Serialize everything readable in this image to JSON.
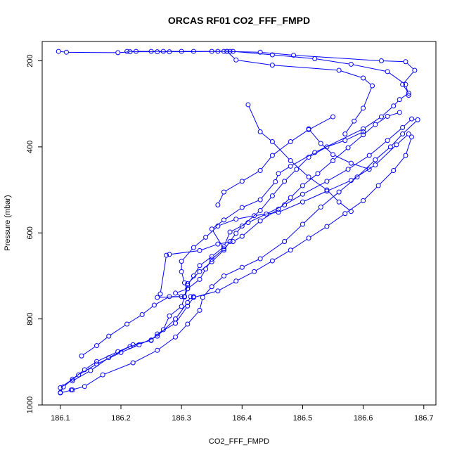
{
  "chart_data": {
    "type": "line",
    "title": "ORCAS RF01 CO2_FFF_FMPD",
    "xlabel": "CO2_FFF_FMPD",
    "ylabel": "Pressure (mbar)",
    "xlim": [
      186.07,
      186.72
    ],
    "ylim": [
      1000,
      155
    ],
    "y_reversed": true,
    "x_ticks": [
      186.1,
      186.2,
      186.3,
      186.4,
      186.5,
      186.6,
      186.7
    ],
    "y_ticks": [
      200,
      400,
      600,
      800,
      1000
    ],
    "grid": false,
    "legend": "none",
    "marker": "open-circle",
    "color": "#0000ff",
    "series": [
      {
        "points": [
          [
            186.097,
            178
          ],
          [
            186.11,
            180
          ],
          [
            186.195,
            181
          ],
          [
            186.215,
            179
          ],
          [
            186.26,
            179
          ],
          [
            186.28,
            179
          ],
          [
            186.37,
            178
          ],
          [
            186.43,
            180
          ],
          [
            186.485,
            187
          ],
          [
            186.63,
            200
          ],
          [
            186.67,
            202
          ],
          [
            186.685,
            222
          ],
          [
            186.665,
            255
          ],
          [
            186.675,
            275
          ],
          [
            186.66,
            290
          ],
          [
            186.65,
            305
          ],
          [
            186.63,
            330
          ],
          [
            186.6,
            358
          ],
          [
            186.52,
            413
          ],
          [
            186.48,
            445
          ],
          [
            186.46,
            462
          ],
          [
            186.455,
            481
          ],
          [
            186.43,
            523
          ],
          [
            186.4,
            541
          ],
          [
            186.37,
            570
          ],
          [
            186.35,
            591
          ],
          [
            186.37,
            637
          ],
          [
            186.35,
            661
          ],
          [
            186.34,
            684
          ],
          [
            186.33,
            708
          ],
          [
            186.31,
            730
          ],
          [
            186.305,
            749
          ],
          [
            186.3,
            771
          ],
          [
            186.28,
            793
          ],
          [
            186.27,
            825
          ],
          [
            186.25,
            849
          ],
          [
            186.215,
            864
          ],
          [
            186.195,
            876
          ],
          [
            186.16,
            899
          ],
          [
            186.14,
            918
          ],
          [
            186.12,
            940
          ],
          [
            186.105,
            958
          ],
          [
            186.1,
            971
          ]
        ]
      },
      {
        "points": [
          [
            186.118,
            965
          ],
          [
            186.14,
            957
          ],
          [
            186.17,
            930
          ],
          [
            186.22,
            902
          ],
          [
            186.26,
            873
          ],
          [
            186.29,
            842
          ],
          [
            186.31,
            812
          ],
          [
            186.33,
            780
          ],
          [
            186.335,
            750
          ],
          [
            186.35,
            725
          ],
          [
            186.37,
            700
          ],
          [
            186.4,
            680
          ],
          [
            186.43,
            660
          ],
          [
            186.47,
            620
          ],
          [
            186.5,
            580
          ],
          [
            186.53,
            540
          ],
          [
            186.56,
            505
          ],
          [
            186.59,
            470
          ],
          [
            186.62,
            430
          ],
          [
            186.645,
            400
          ],
          [
            186.665,
            370
          ],
          [
            186.69,
            337
          ],
          [
            186.68,
            335
          ],
          [
            186.665,
            355
          ],
          [
            186.64,
            385
          ],
          [
            186.61,
            420
          ],
          [
            186.575,
            452
          ],
          [
            186.54,
            480
          ],
          [
            186.5,
            510
          ],
          [
            186.47,
            535
          ],
          [
            186.44,
            556
          ],
          [
            186.41,
            576
          ],
          [
            186.38,
            598
          ],
          [
            186.37,
            632
          ],
          [
            186.35,
            655
          ],
          [
            186.33,
            676
          ],
          [
            186.32,
            700
          ],
          [
            186.31,
            722
          ],
          [
            186.305,
            748
          ]
        ]
      },
      {
        "points": [
          [
            186.305,
            748
          ],
          [
            186.26,
            750
          ],
          [
            186.265,
            742
          ],
          [
            186.275,
            652
          ],
          [
            186.28,
            650
          ],
          [
            186.33,
            641
          ],
          [
            186.36,
            626
          ],
          [
            186.385,
            620
          ],
          [
            186.4,
            608
          ],
          [
            186.43,
            572
          ],
          [
            186.46,
            545
          ],
          [
            186.48,
            518
          ],
          [
            186.5,
            490
          ],
          [
            186.525,
            462
          ],
          [
            186.55,
            432
          ],
          [
            186.575,
            402
          ],
          [
            186.6,
            372
          ],
          [
            186.62,
            348
          ],
          [
            186.64,
            329
          ],
          [
            186.66,
            320
          ]
        ]
      },
      {
        "points": [
          [
            186.12,
            944
          ],
          [
            186.15,
            920
          ],
          [
            186.18,
            890
          ],
          [
            186.22,
            860
          ],
          [
            186.25,
            850
          ],
          [
            186.26,
            835
          ],
          [
            186.29,
            810
          ],
          [
            186.31,
            770
          ],
          [
            186.32,
            750
          ],
          [
            186.36,
            735
          ],
          [
            186.39,
            712
          ],
          [
            186.42,
            690
          ],
          [
            186.45,
            665
          ],
          [
            186.48,
            640
          ],
          [
            186.51,
            612
          ],
          [
            186.54,
            585
          ],
          [
            186.57,
            555
          ],
          [
            186.6,
            525
          ],
          [
            186.625,
            490
          ],
          [
            186.65,
            455
          ],
          [
            186.67,
            420
          ],
          [
            186.68,
            377
          ],
          [
            186.675,
            370
          ],
          [
            186.655,
            395
          ],
          [
            186.62,
            442
          ],
          [
            186.58,
            478
          ],
          [
            186.54,
            503
          ],
          [
            186.5,
            528
          ],
          [
            186.46,
            552
          ],
          [
            186.42,
            560
          ],
          [
            186.39,
            568
          ],
          [
            186.36,
            584
          ],
          [
            186.34,
            610
          ],
          [
            186.32,
            634
          ],
          [
            186.3,
            666
          ],
          [
            186.3,
            690
          ],
          [
            186.305,
            716
          ]
        ]
      },
      {
        "points": [
          [
            186.135,
            886
          ],
          [
            186.16,
            862
          ],
          [
            186.18,
            840
          ],
          [
            186.21,
            812
          ],
          [
            186.235,
            790
          ],
          [
            186.255,
            768
          ],
          [
            186.28,
            748
          ],
          [
            186.3,
            748
          ],
          [
            186.29,
            740
          ],
          [
            186.31,
            730
          ]
        ]
      },
      {
        "points": [
          [
            186.1,
            960
          ],
          [
            186.13,
            930
          ],
          [
            186.16,
            905
          ],
          [
            186.2,
            878
          ],
          [
            186.23,
            860
          ],
          [
            186.26,
            840
          ],
          [
            186.29,
            800
          ],
          [
            186.31,
            762
          ],
          [
            186.315,
            748
          ],
          [
            186.32,
            748
          ]
        ]
      },
      {
        "points": [
          [
            186.41,
            302
          ],
          [
            186.43,
            365
          ],
          [
            186.45,
            388
          ],
          [
            186.48,
            432
          ],
          [
            186.51,
            470
          ],
          [
            186.54,
            500
          ],
          [
            186.56,
            528
          ],
          [
            186.58,
            550
          ]
        ]
      },
      {
        "points": [
          [
            186.305,
            748
          ],
          [
            186.31,
            718
          ],
          [
            186.33,
            690
          ],
          [
            186.35,
            667
          ],
          [
            186.37,
            640
          ],
          [
            186.38,
            620
          ],
          [
            186.39,
            601
          ],
          [
            186.4,
            584
          ],
          [
            186.43,
            548
          ],
          [
            186.45,
            514
          ],
          [
            186.47,
            480
          ],
          [
            186.49,
            452
          ],
          [
            186.51,
            424
          ],
          [
            186.54,
            400
          ],
          [
            186.57,
            385
          ],
          [
            186.6,
            365
          ]
        ]
      },
      {
        "points": [
          [
            186.51,
            358
          ],
          [
            186.53,
            392
          ],
          [
            186.55,
            418
          ],
          [
            186.58,
            438
          ],
          [
            186.61,
            452
          ]
        ]
      },
      {
        "points": [
          [
            186.36,
            535
          ],
          [
            186.37,
            505
          ],
          [
            186.4,
            480
          ],
          [
            186.43,
            455
          ],
          [
            186.45,
            420
          ],
          [
            186.48,
            388
          ],
          [
            186.51,
            360
          ],
          [
            186.55,
            330
          ]
        ]
      },
      {
        "points": [
          [
            186.21,
            178
          ],
          [
            186.225,
            178
          ],
          [
            186.25,
            178
          ],
          [
            186.27,
            178
          ],
          [
            186.3,
            178
          ],
          [
            186.32,
            178
          ],
          [
            186.35,
            178
          ],
          [
            186.375,
            178
          ],
          [
            186.39,
            198
          ],
          [
            186.45,
            210
          ],
          [
            186.56,
            222
          ],
          [
            186.6,
            240
          ],
          [
            186.615,
            258
          ],
          [
            186.6,
            310
          ],
          [
            186.585,
            340
          ],
          [
            186.57,
            370
          ]
        ]
      },
      {
        "points": [
          [
            186.36,
            178
          ],
          [
            186.375,
            178
          ],
          [
            186.38,
            178
          ],
          [
            186.385,
            178
          ],
          [
            186.45,
            186
          ],
          [
            186.52,
            195
          ],
          [
            186.58,
            208
          ],
          [
            186.64,
            225
          ],
          [
            186.67,
            255
          ],
          [
            186.675,
            280
          ]
        ]
      },
      {
        "points": [
          [
            186.12,
            965
          ],
          [
            186.1,
            972
          ]
        ]
      }
    ]
  }
}
